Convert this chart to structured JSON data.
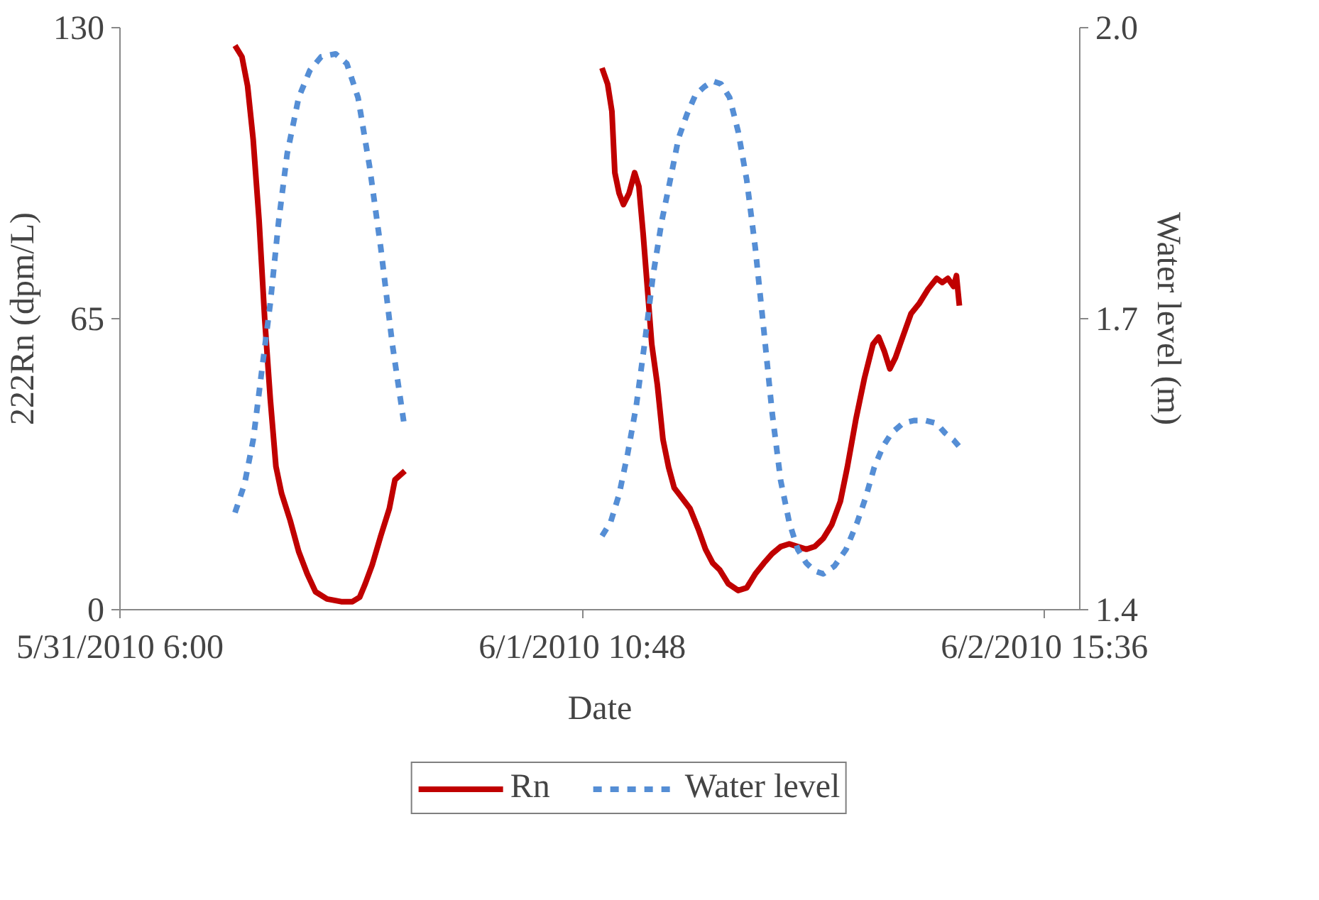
{
  "chart_data": {
    "type": "line",
    "xlabel": "Date",
    "ylabel": "222Rn (dpm/L)",
    "y2label": "Water level (m)",
    "xlim": [
      "2010-05-31T06:00",
      "2010-06-02T17:48"
    ],
    "xticks": [
      {
        "value": "2010-05-31T06:00",
        "label": "5/31/2010 6:00"
      },
      {
        "value": "2010-06-01T10:48",
        "label": "6/1/2010 10:48"
      },
      {
        "value": "2010-06-02T15:36",
        "label": "6/2/2010 15:36"
      }
    ],
    "ylim": [
      0,
      130
    ],
    "yticks": [
      0,
      65,
      130
    ],
    "y2lim": [
      1.4,
      2.0
    ],
    "y2ticks": [
      1.4,
      1.7,
      {
        "value": 2.0,
        "label": "2.0"
      }
    ],
    "grid": false,
    "legend": "bottom",
    "marker": "none",
    "series": [
      {
        "name": "Rn",
        "color": "#c00000",
        "line_style": "solid",
        "x": [
          "2010-05-31T13:10",
          "2010-05-31T13:36",
          "2010-05-31T13:57",
          "2010-05-31T14:18",
          "2010-05-31T14:40",
          "2010-05-31T15:01",
          "2010-05-31T15:22",
          "2010-05-31T15:43",
          "2010-05-31T16:04",
          "2010-05-31T16:36",
          "2010-05-31T17:08",
          "2010-05-31T17:40",
          "2010-05-31T18:11",
          "2010-05-31T18:54",
          "2010-05-31T19:47",
          "2010-05-31T20:29",
          "2010-05-31T20:56",
          "2010-05-31T21:17",
          "2010-05-31T21:43",
          "2010-05-31T22:15",
          "2010-05-31T22:47",
          "2010-05-31T23:08",
          "2010-05-31T23:45",
          "2010-06-01T06:00",
          "2010-06-01T12:02",
          "2010-06-01T12:23",
          "2010-06-01T12:39",
          "2010-06-01T12:50",
          "2010-06-01T13:06",
          "2010-06-01T13:22",
          "2010-06-01T13:43",
          "2010-06-01T14:04",
          "2010-06-01T14:20",
          "2010-06-01T14:36",
          "2010-06-01T14:52",
          "2010-06-01T15:08",
          "2010-06-01T15:29",
          "2010-06-01T15:50",
          "2010-06-01T16:11",
          "2010-06-01T16:32",
          "2010-06-01T16:59",
          "2010-06-01T17:31",
          "2010-06-01T18:02",
          "2010-06-01T18:29",
          "2010-06-01T18:56",
          "2010-06-01T19:22",
          "2010-06-01T19:54",
          "2010-06-01T20:31",
          "2010-06-01T21:03",
          "2010-06-01T21:35",
          "2010-06-01T22:07",
          "2010-06-01T22:38",
          "2010-06-01T23:10",
          "2010-06-01T23:42",
          "2010-06-02T00:14",
          "2010-06-02T00:46",
          "2010-06-02T01:17",
          "2010-06-02T01:49",
          "2010-06-02T02:21",
          "2010-06-02T02:53",
          "2010-06-02T03:19",
          "2010-06-02T03:51",
          "2010-06-02T04:23",
          "2010-06-02T04:55",
          "2010-06-02T05:16",
          "2010-06-02T05:37",
          "2010-06-02T05:58",
          "2010-06-02T06:19",
          "2010-06-02T06:46",
          "2010-06-02T07:17",
          "2010-06-02T07:49",
          "2010-06-02T08:21",
          "2010-06-02T08:53",
          "2010-06-02T09:14",
          "2010-06-02T09:35",
          "2010-06-02T09:56",
          "2010-06-02T10:07",
          "2010-06-02T10:18"
        ],
        "values": [
          126,
          123.5,
          117,
          105,
          87,
          65,
          47,
          32,
          26,
          20,
          13,
          8,
          4,
          2.4,
          1.8,
          1.8,
          2.8,
          5.8,
          10,
          16.5,
          22.6,
          29,
          31,
          null,
          121,
          117.4,
          111.3,
          97.6,
          93,
          90.5,
          93,
          97.6,
          94.5,
          83.8,
          71.6,
          59.3,
          50.2,
          38,
          31.8,
          27.2,
          25.1,
          22.6,
          18,
          13.5,
          10.4,
          8.9,
          5.8,
          4.3,
          4.9,
          8,
          10.4,
          12.5,
          14.1,
          14.7,
          14.1,
          13.5,
          14.1,
          15.9,
          19,
          24.2,
          31.8,
          42.5,
          51.7,
          59.3,
          60.9,
          57.8,
          53.8,
          56.3,
          60.9,
          66.1,
          68.5,
          71.6,
          74,
          73.1,
          74,
          72.2,
          74.6,
          67.9
        ]
      },
      {
        "name": "Water level",
        "color": "#558ed5",
        "line_style": "dashed",
        "axis": "y2",
        "x": [
          "2010-05-31T13:10",
          "2010-05-31T13:46",
          "2010-05-31T14:18",
          "2010-05-31T14:50",
          "2010-05-31T15:22",
          "2010-05-31T15:53",
          "2010-05-31T16:25",
          "2010-05-31T17:08",
          "2010-05-31T17:50",
          "2010-05-31T18:32",
          "2010-05-31T19:26",
          "2010-05-31T20:08",
          "2010-05-31T20:50",
          "2010-05-31T21:33",
          "2010-05-31T22:15",
          "2010-05-31T22:58",
          "2010-05-31T23:45",
          "2010-06-01T06:00",
          "2010-06-01T12:02",
          "2010-06-01T12:34",
          "2010-06-01T13:06",
          "2010-06-01T13:38",
          "2010-06-01T14:10",
          "2010-06-01T14:41",
          "2010-06-01T15:13",
          "2010-06-01T15:45",
          "2010-06-01T16:17",
          "2010-06-01T16:48",
          "2010-06-01T17:20",
          "2010-06-01T17:52",
          "2010-06-01T18:24",
          "2010-06-01T18:56",
          "2010-06-01T19:27",
          "2010-06-01T19:59",
          "2010-06-01T20:31",
          "2010-06-01T21:03",
          "2010-06-01T21:35",
          "2010-06-01T22:07",
          "2010-06-01T22:38",
          "2010-06-01T23:10",
          "2010-06-01T23:42",
          "2010-06-02T00:14",
          "2010-06-02T00:46",
          "2010-06-02T01:17",
          "2010-06-02T01:49",
          "2010-06-02T02:31",
          "2010-06-02T03:14",
          "2010-06-02T03:56",
          "2010-06-02T04:28",
          "2010-06-02T05:00",
          "2010-06-02T05:32",
          "2010-06-02T06:04",
          "2010-06-02T06:46",
          "2010-06-02T07:28",
          "2010-06-02T08:11",
          "2010-06-02T08:53",
          "2010-06-02T09:25",
          "2010-06-02T09:56",
          "2010-06-02T10:18"
        ],
        "values": [
          1.5,
          1.53,
          1.575,
          1.646,
          1.716,
          1.8,
          1.87,
          1.928,
          1.956,
          1.97,
          1.973,
          1.963,
          1.928,
          1.857,
          1.773,
          1.674,
          1.586,
          null,
          1.476,
          1.49,
          1.519,
          1.561,
          1.61,
          1.674,
          1.745,
          1.8,
          1.843,
          1.886,
          1.911,
          1.931,
          1.939,
          1.945,
          1.942,
          1.928,
          1.893,
          1.843,
          1.773,
          1.688,
          1.603,
          1.533,
          1.49,
          1.462,
          1.448,
          1.44,
          1.437,
          1.445,
          1.462,
          1.49,
          1.516,
          1.547,
          1.568,
          1.582,
          1.592,
          1.595,
          1.595,
          1.592,
          1.582,
          1.575,
          1.568
        ]
      }
    ]
  }
}
